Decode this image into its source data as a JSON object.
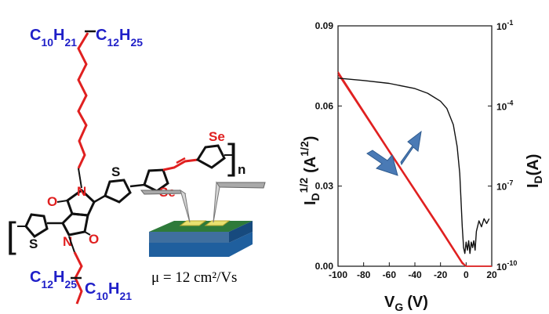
{
  "molecule": {
    "side_chain_top_left": "C10H21",
    "side_chain_top_right": "C12H25",
    "side_chain_bottom_left": "C12H25",
    "side_chain_bottom_right": "C10H21",
    "atoms": {
      "oxygen": "O",
      "nitrogen": "N",
      "sulfur": "S",
      "selenium": "Se"
    },
    "repeat_subscript": "n",
    "colors": {
      "chain": "#e02020",
      "alkyl_text": "#1f1fc8",
      "heteroatom": "#e02020"
    }
  },
  "device": {
    "mobility_label": "μ = 12 cm²/Vs",
    "colors": {
      "substrate_top": "#2e7a3a",
      "substrate_side": "#1f5f9e",
      "electrode": "#e8e070",
      "probe": "#a9a9a9"
    }
  },
  "chart_data": {
    "type": "line",
    "xlim": [
      -100,
      20
    ],
    "ylim_left": [
      0,
      0.09
    ],
    "ylim_right": [
      1e-10,
      0.1
    ],
    "right_scale": "log",
    "x_ticks": [
      -100,
      -80,
      -60,
      -40,
      -20,
      0,
      20
    ],
    "y_left_ticks": [
      "0.00",
      "0.03",
      "0.06",
      "0.09"
    ],
    "y_right_ticks": [
      "10",
      "10",
      "10",
      "10"
    ],
    "y_right_exponents": [
      "-10",
      "-7",
      "-4",
      "-1"
    ],
    "xlabel": "V",
    "xlabel_sub": "G",
    "xlabel_unit": "(V)",
    "ylabel_left": "I",
    "ylabel_left_sub": "D",
    "ylabel_left_sup": "1/2",
    "ylabel_left_unit_a": "(A",
    "ylabel_left_unit_sup": "1/2",
    "ylabel_left_unit_b": ")",
    "ylabel_right": "I",
    "ylabel_right_sub": "D",
    "ylabel_right_unit": "(A)",
    "grid": false,
    "sqrt_sweep": {
      "axis": "left",
      "color": "#e02020",
      "forward": {
        "x": [
          -100,
          -60,
          -20,
          -3,
          0,
          20
        ],
        "y": [
          0.0728,
          0.0433,
          0.0142,
          0.0015,
          0.0,
          0.0
        ]
      },
      "reverse": {
        "x": [
          -100,
          -60,
          -20,
          -3,
          0,
          20
        ],
        "y": [
          0.072,
          0.0428,
          0.0136,
          0.001,
          0.0,
          0.0
        ]
      }
    },
    "log_transfer": {
      "axis": "right",
      "color": "#111111",
      "x": [
        -100,
        -80,
        -60,
        -40,
        -30,
        -20,
        -15,
        -10,
        -7,
        -5,
        -4,
        -3,
        -2,
        -1,
        0,
        1,
        2,
        3,
        4,
        5,
        6,
        7,
        8,
        10,
        12,
        14,
        16,
        18
      ],
      "y": [
        0.0011,
        0.0009,
        0.0007,
        0.00045,
        0.0003,
        0.00015,
        8e-05,
        2e-05,
        3e-06,
        3e-07,
        3e-08,
        3e-09,
        5e-10,
        3e-10,
        8e-10,
        4e-10,
        9e-10,
        3e-10,
        8e-10,
        5e-10,
        9e-10,
        4e-10,
        2e-09,
        5e-09,
        3e-09,
        6e-09,
        4e-09,
        6e-09
      ]
    }
  }
}
